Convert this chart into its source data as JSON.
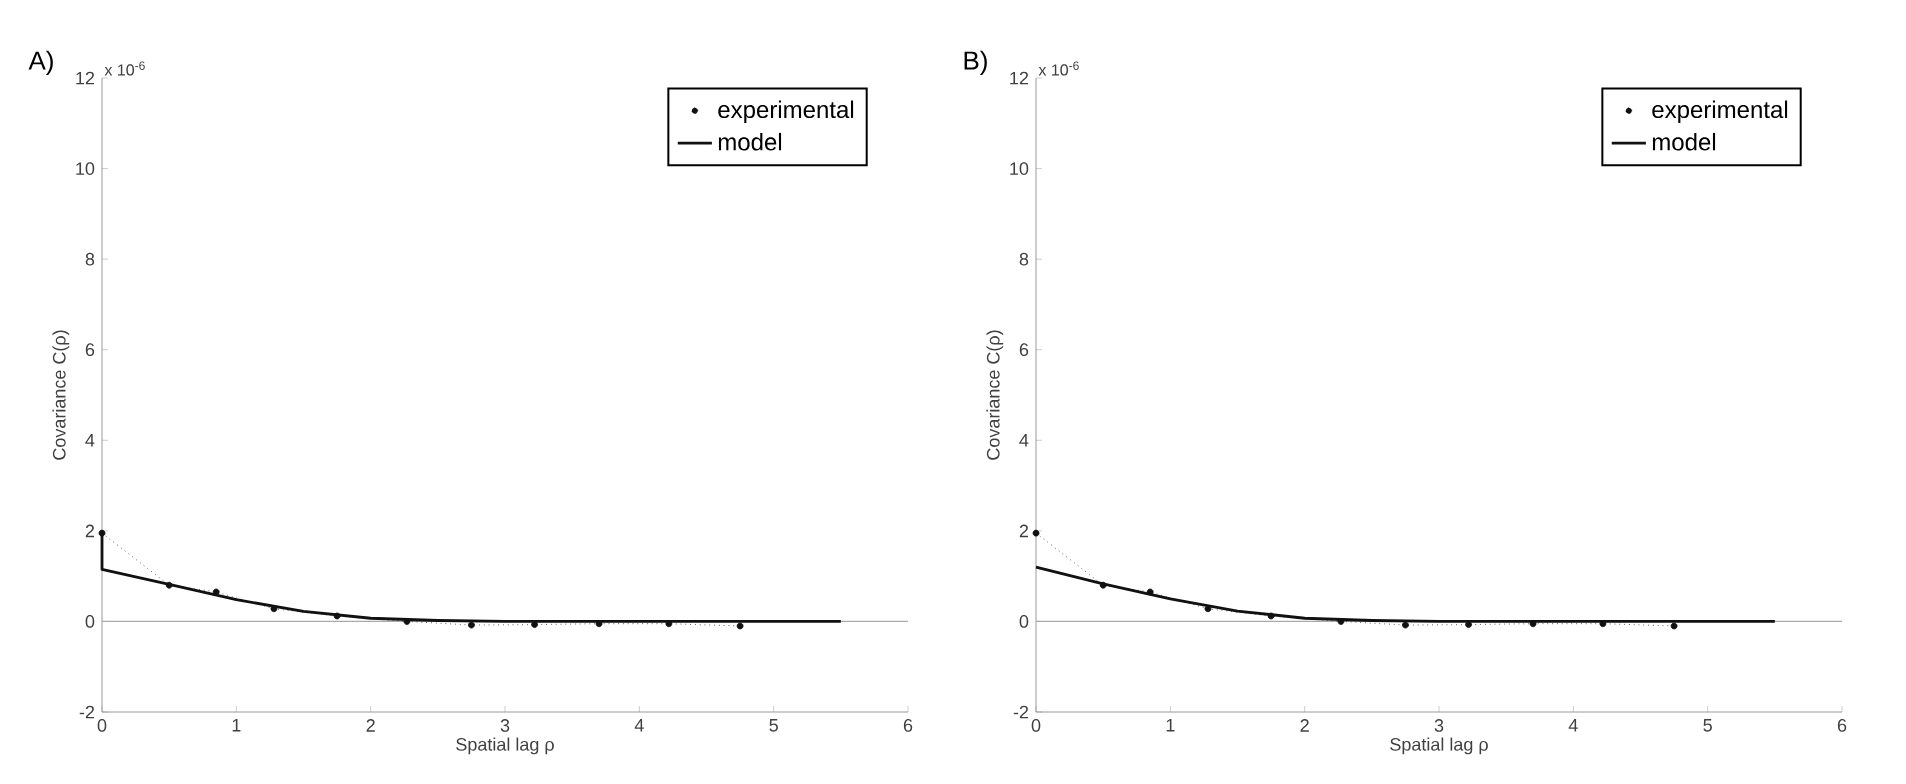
{
  "chart_data": [
    {
      "type": "line",
      "title": "A)",
      "xlabel": "Spatial lag ρ",
      "ylabel": "Covariance C(ρ)",
      "annotations": [
        "x 10$^{-6}$"
      ],
      "xlim": [
        0,
        6
      ],
      "xticks": [
        0,
        1,
        2,
        3,
        4,
        5,
        6
      ],
      "ylim": [
        -2,
        12
      ],
      "yticks": [
        -2,
        0,
        2,
        4,
        6,
        8,
        10,
        12
      ],
      "legend": "top right",
      "ref_lines": [
        {
          "axis": "y",
          "value": 0,
          "color": "#aaaaaa"
        }
      ],
      "series": [
        {
          "name": "experimental",
          "color": "#111111",
          "marker": "circle",
          "line_style": "dotted",
          "x": [
            0,
            0.5,
            0.85,
            1.28,
            1.75,
            2.27,
            2.75,
            3.22,
            3.7,
            4.22,
            4.75
          ],
          "values": [
            1.95,
            0.8,
            0.65,
            0.28,
            0.12,
            0.0,
            -0.08,
            -0.07,
            -0.05,
            -0.05,
            -0.1
          ]
        },
        {
          "name": "model",
          "color": "#111111",
          "marker": "none",
          "line_style": "solid",
          "x": [
            0,
            0,
            0.5,
            1,
            1.5,
            2,
            2.5,
            3,
            4,
            5.5
          ],
          "values": [
            1.95,
            1.15,
            0.82,
            0.48,
            0.22,
            0.07,
            0.02,
            0.0,
            0.0,
            0.0
          ]
        }
      ]
    },
    {
      "type": "line",
      "title": "B)",
      "xlabel": "Spatial lag ρ",
      "ylabel": "Covariance C(ρ)",
      "annotations": [
        "x 10$^{-6}$"
      ],
      "xlim": [
        0,
        6
      ],
      "xticks": [
        0,
        1,
        2,
        3,
        4,
        5,
        6
      ],
      "ylim": [
        -2,
        12
      ],
      "yticks": [
        -2,
        0,
        2,
        4,
        6,
        8,
        10,
        12
      ],
      "legend": "top right",
      "ref_lines": [
        {
          "axis": "y",
          "value": 0,
          "color": "#aaaaaa"
        }
      ],
      "series": [
        {
          "name": "experimental",
          "color": "#111111",
          "marker": "circle",
          "line_style": "dotted",
          "x": [
            0,
            0.5,
            0.85,
            1.28,
            1.75,
            2.27,
            2.75,
            3.22,
            3.7,
            4.22,
            4.75
          ],
          "values": [
            1.95,
            0.8,
            0.65,
            0.28,
            0.12,
            0.0,
            -0.08,
            -0.07,
            -0.05,
            -0.05,
            -0.1
          ]
        },
        {
          "name": "model",
          "color": "#111111",
          "marker": "none",
          "line_style": "solid",
          "x": [
            0,
            0.5,
            1,
            1.5,
            2,
            2.5,
            3,
            4,
            5.5
          ],
          "values": [
            1.2,
            0.83,
            0.5,
            0.23,
            0.07,
            0.02,
            0.0,
            0.0,
            0.0
          ]
        }
      ]
    }
  ]
}
